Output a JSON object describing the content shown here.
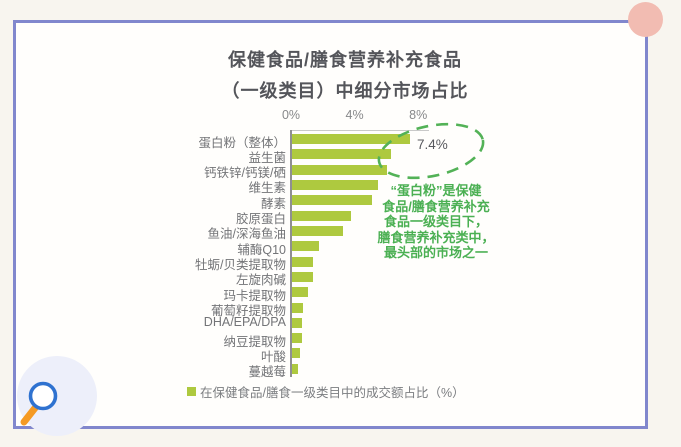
{
  "chart_data": {
    "type": "bar",
    "orientation": "horizontal",
    "title_lines": [
      "保健食品/膳食营养补充食品",
      "（一级类目）中细分市场占比"
    ],
    "categories": [
      "蛋白粉（整体）",
      "益生菌",
      "钙铁锌/钙镁/硒",
      "维生素",
      "酵素",
      "胶原蛋白",
      "鱼油/深海鱼油",
      "辅酶Q10",
      "牡蛎/贝类提取物",
      "左旋肉碱",
      "玛卡提取物",
      "葡萄籽提取物",
      "DHA/EPA/DPA",
      "纳豆提取物",
      "叶酸",
      "蔓越莓"
    ],
    "values": [
      7.4,
      6.2,
      6.0,
      5.4,
      5.0,
      3.7,
      3.2,
      1.7,
      1.3,
      1.3,
      1.0,
      0.7,
      0.6,
      0.6,
      0.5,
      0.4
    ],
    "x_ticks": [
      {
        "label": "0%",
        "value": 0
      },
      {
        "label": "4%",
        "value": 4
      },
      {
        "label": "8%",
        "value": 8
      }
    ],
    "xlim": [
      0,
      8.6
    ],
    "grid": "off",
    "bar_color": "#aec93f",
    "data_label": {
      "text": "7.4%",
      "category_index": 0
    },
    "legend": {
      "label": "在保健食品/膳食一级类目中的成交额占比（%）",
      "swatch_color": "#aec93f",
      "position": "bottom"
    }
  },
  "annotation": {
    "note_lines": [
      "“蛋白粉”是保健",
      "食品/膳食营养补充",
      "食品一级类目下，",
      "膳食营养补充类中，",
      "最头部的市场之一"
    ],
    "note_color": "#4bb053",
    "ellipse_color": "#53b257"
  },
  "decor": {
    "card_border_color": "#8187cd",
    "pink_dot_color": "#f2bcb2",
    "badge_color": "#edeffa",
    "magnifier_ring_color": "#2f72d0",
    "magnifier_handle_color": "#f59a23"
  }
}
